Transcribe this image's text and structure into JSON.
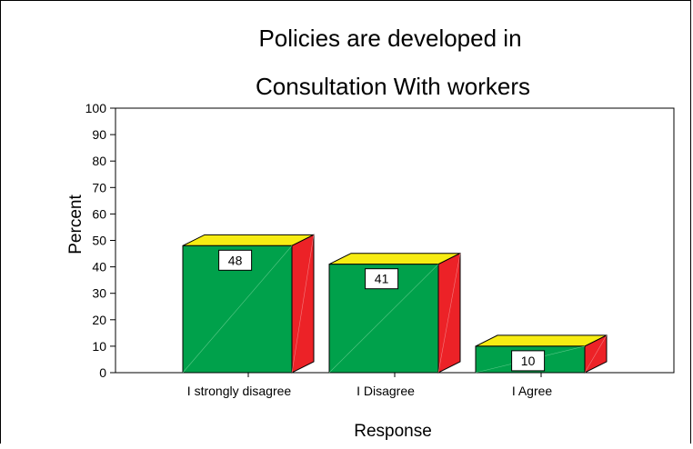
{
  "chart_data": {
    "type": "bar",
    "title_lines": [
      "Policies are developed in",
      "Consultation With workers"
    ],
    "xlabel": "Response",
    "ylabel": "Percent",
    "ylim": [
      0,
      100
    ],
    "yticks": [
      0,
      10,
      20,
      30,
      40,
      50,
      60,
      70,
      80,
      90,
      100
    ],
    "categories": [
      "I strongly disagree",
      "I Disagree",
      "I Agree"
    ],
    "values": [
      48,
      41,
      10
    ],
    "data_labels": [
      "48",
      "41",
      "10"
    ],
    "bar_style": "3d",
    "colors": {
      "front": "#00a14b",
      "top": "#f7ec13",
      "side": "#ec2227"
    }
  }
}
